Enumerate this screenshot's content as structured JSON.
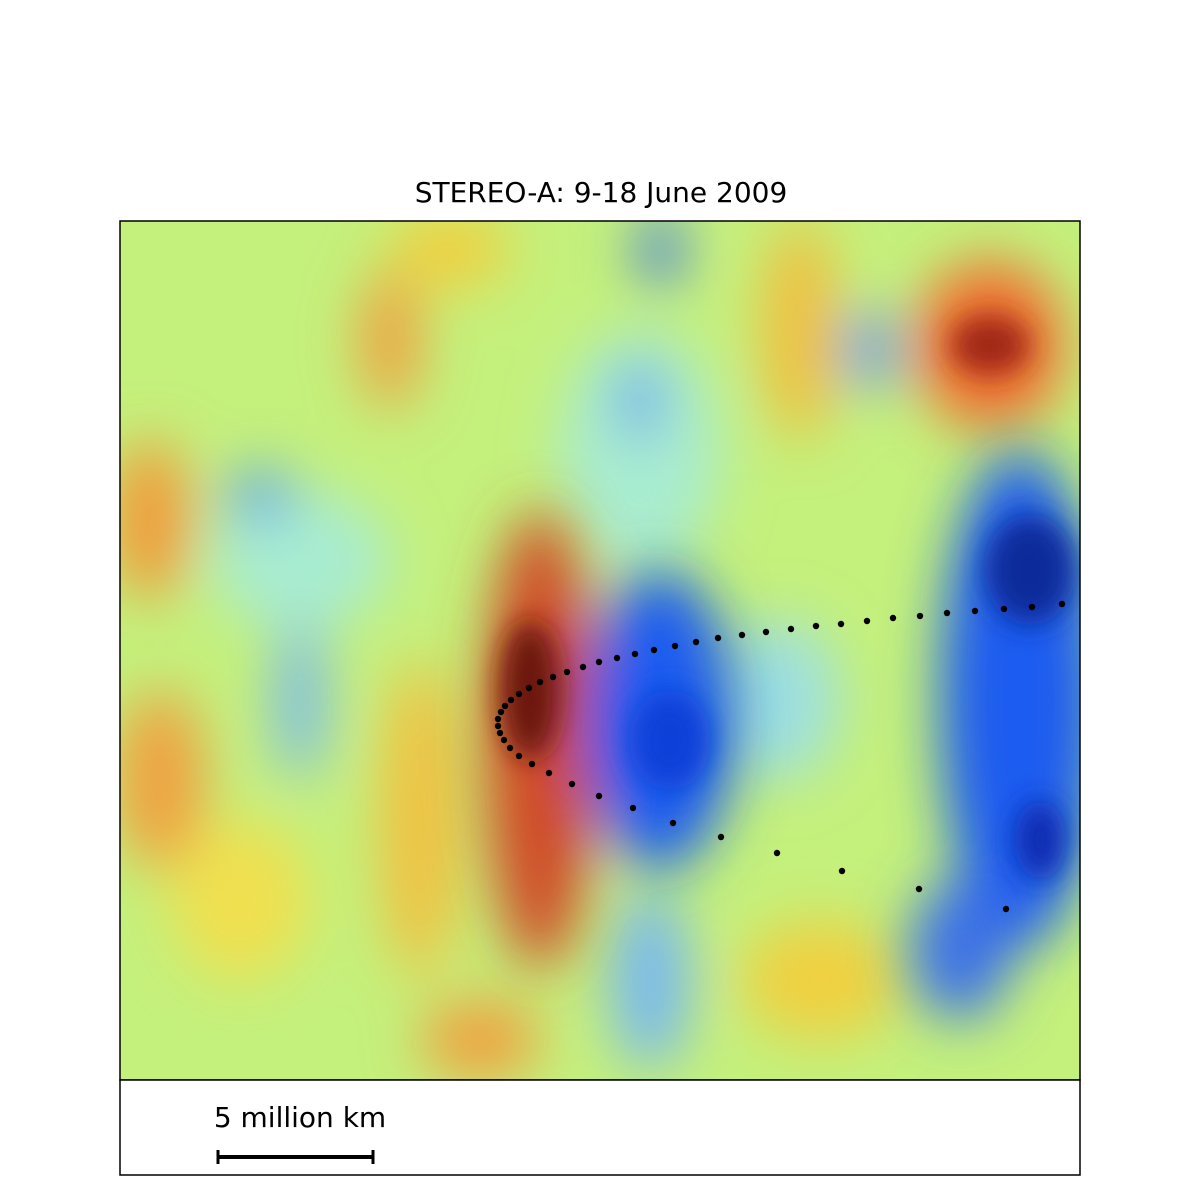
{
  "title": "STEREO-A: 9-18 June 2009",
  "scale_bar": {
    "label": "5 million km"
  }
}
